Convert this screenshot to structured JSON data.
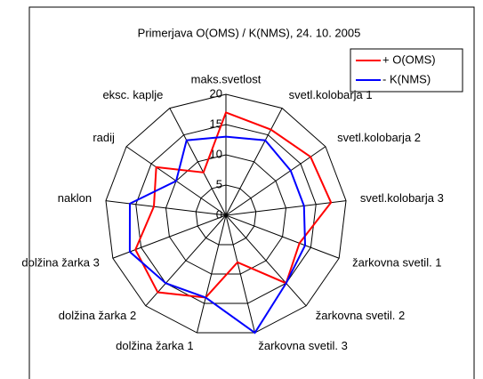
{
  "chart_data": {
    "type": "radar",
    "title": "Primerjava O(OMS) / K(NMS), 24. 10. 2005",
    "categories": [
      "maks.svetlost",
      "svetl.kolobarja 1",
      "svetl.kolobarja 2",
      "svetl.kolobarja 3",
      "žarkovna svetil. 1",
      "žarkovna svetil. 2",
      "žarkovna svetil. 3",
      "dolžina žarka 1",
      "dolžina žarka 2",
      "dolžina žarka 3",
      "naklon",
      "radij",
      "eksc. kaplje"
    ],
    "series": [
      {
        "name": "+ O(OMS)",
        "color": "#ff0000",
        "values": [
          17,
          16,
          17,
          17.5,
          13,
          15,
          8,
          14,
          17,
          16,
          12,
          14,
          8
        ]
      },
      {
        "name": "- K(NMS)",
        "color": "#0000ff",
        "values": [
          13,
          14,
          13,
          13,
          14,
          15,
          20,
          14,
          15,
          17,
          16,
          10,
          14
        ]
      }
    ],
    "ylim": [
      0,
      20
    ],
    "yticks": [
      0,
      5,
      10,
      15,
      20
    ],
    "grid": true,
    "legend": "top-right"
  }
}
